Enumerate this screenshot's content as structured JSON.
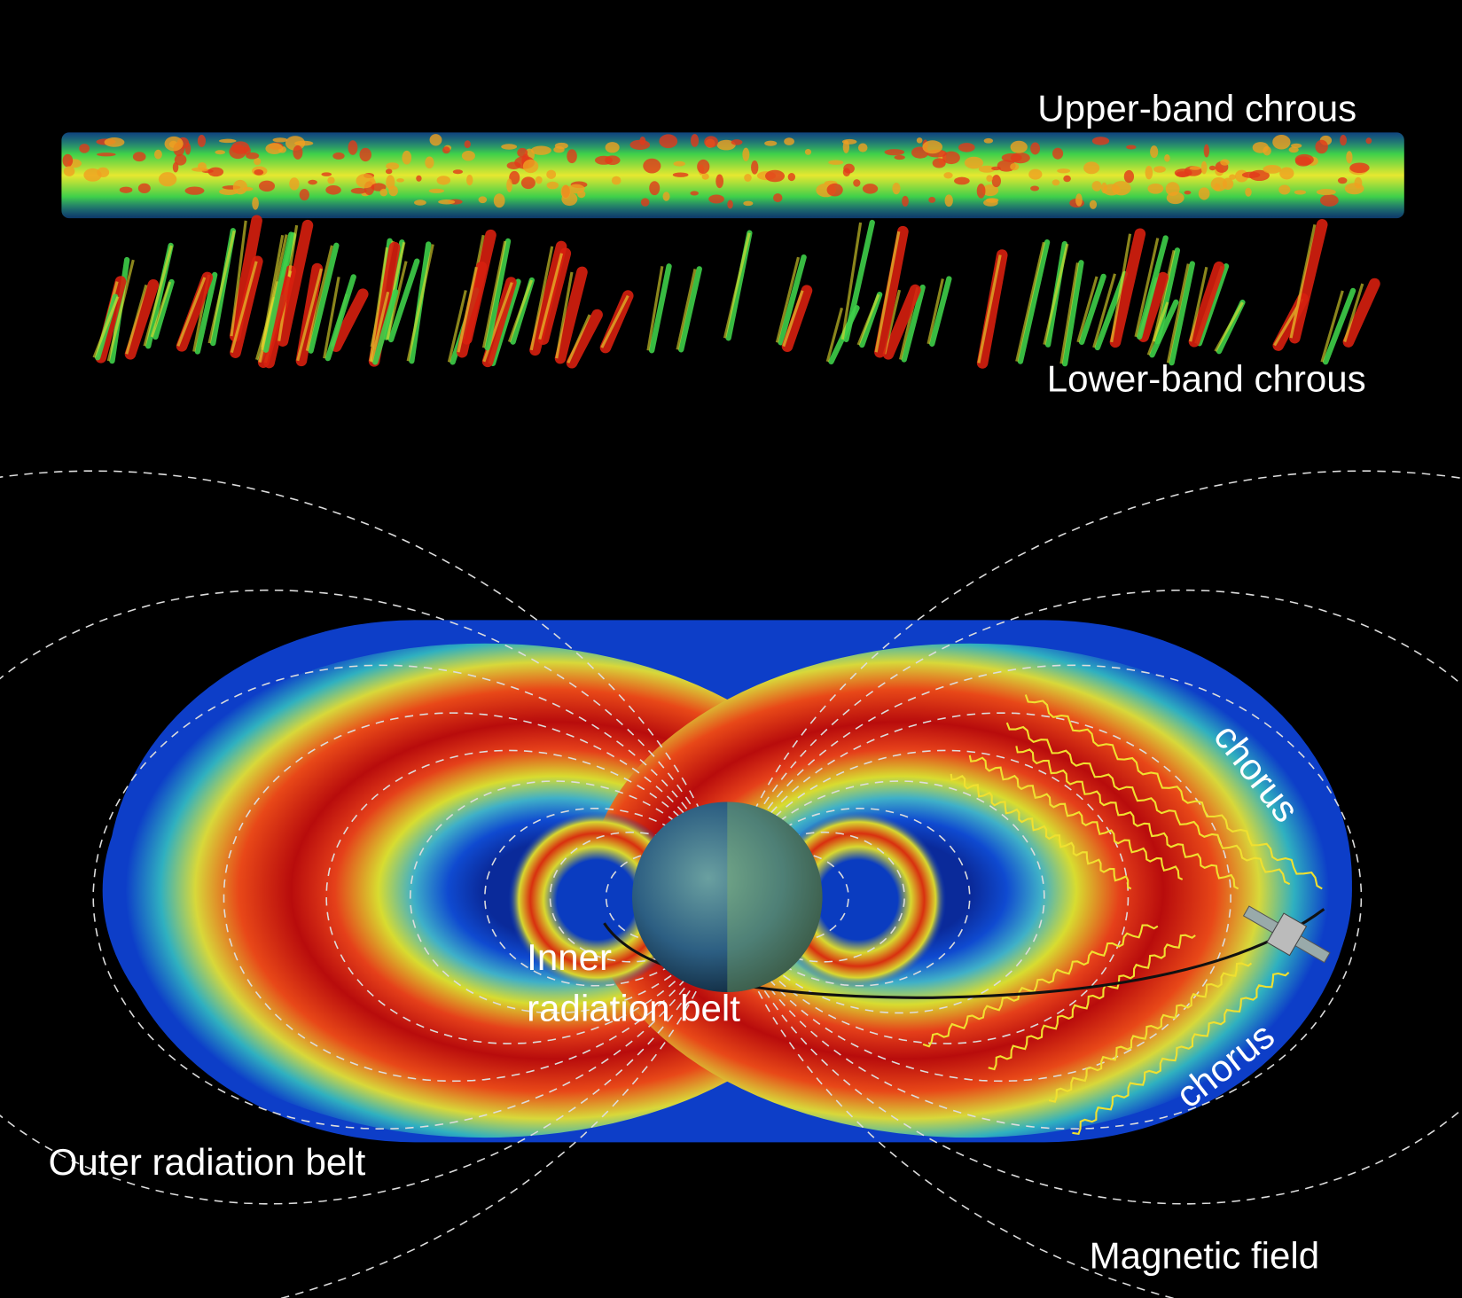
{
  "spectrogram": {
    "upper_label": "Upper-band chrous",
    "lower_label": "Lower-band chrous"
  },
  "belts": {
    "inner_label": [
      "Inner",
      "radiation belt"
    ],
    "outer_label": "Outer radiation belt",
    "field_label": "Magnetic field",
    "chorus_labels": [
      "chorus",
      "chorus"
    ]
  }
}
